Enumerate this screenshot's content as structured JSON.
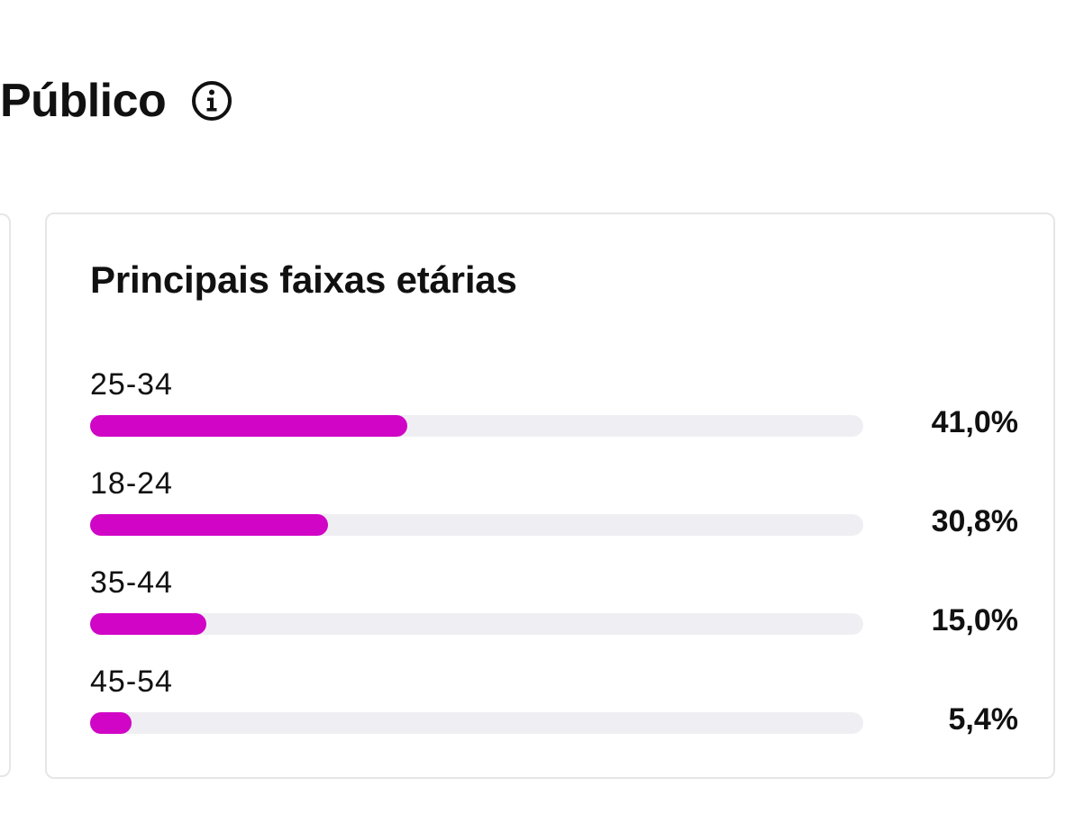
{
  "section": {
    "title": "Público",
    "info_icon": "info-circle-icon"
  },
  "card": {
    "title": "Principais faixas etárias",
    "bar_color": "#d005c6",
    "track_color": "#efeff3",
    "items": [
      {
        "label": "25-34",
        "value": 41.0,
        "value_label": "41,0%"
      },
      {
        "label": "18-24",
        "value": 30.8,
        "value_label": "30,8%"
      },
      {
        "label": "35-44",
        "value": 15.0,
        "value_label": "15,0%"
      },
      {
        "label": "45-54",
        "value": 5.4,
        "value_label": "5,4%"
      }
    ]
  }
}
